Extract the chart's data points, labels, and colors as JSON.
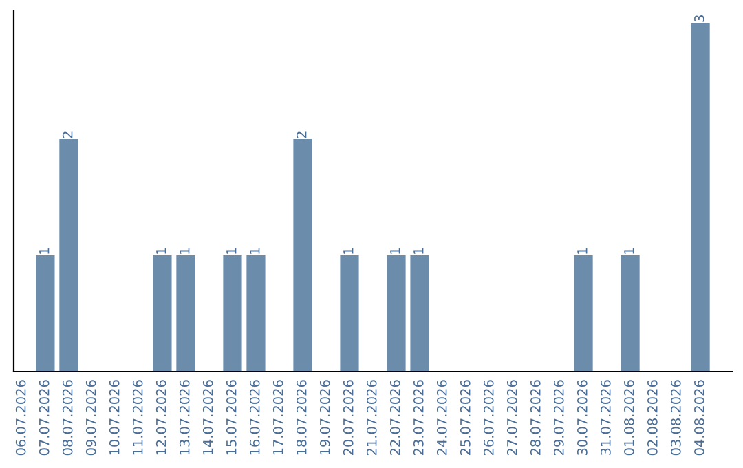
{
  "chart_data": {
    "type": "bar",
    "categories": [
      "06.07.2026",
      "07.07.2026",
      "08.07.2026",
      "09.07.2026",
      "10.07.2026",
      "11.07.2026",
      "12.07.2026",
      "13.07.2026",
      "14.07.2026",
      "15.07.2026",
      "16.07.2026",
      "17.07.2026",
      "18.07.2026",
      "19.07.2026",
      "20.07.2026",
      "21.07.2026",
      "22.07.2026",
      "23.07.2026",
      "24.07.2026",
      "25.07.2026",
      "26.07.2026",
      "27.07.2026",
      "28.07.2026",
      "29.07.2026",
      "30.07.2026",
      "31.07.2026",
      "01.08.2026",
      "02.08.2026",
      "03.08.2026",
      "04.08.2026"
    ],
    "values": [
      0,
      1,
      2,
      0,
      0,
      0,
      1,
      1,
      0,
      1,
      1,
      0,
      2,
      0,
      1,
      0,
      1,
      1,
      0,
      0,
      0,
      0,
      0,
      0,
      1,
      0,
      1,
      0,
      0,
      3
    ],
    "value_labels": [
      null,
      "1",
      "2",
      null,
      null,
      null,
      "1",
      "1",
      null,
      "1",
      "1",
      null,
      "2",
      null,
      "1",
      null,
      "1",
      "1",
      null,
      null,
      null,
      null,
      null,
      null,
      "1",
      null,
      "1",
      null,
      null,
      "3"
    ],
    "color": "#6b8caa",
    "ylim": [
      0,
      3.1
    ],
    "tick_labels": "x",
    "grid": false,
    "legend": false
  }
}
